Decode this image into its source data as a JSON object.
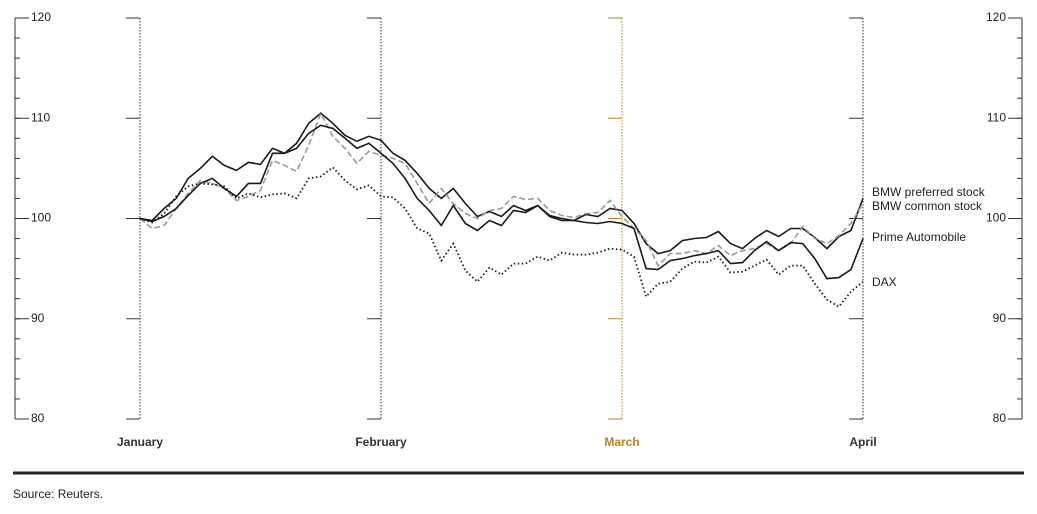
{
  "chart_data": {
    "type": "line",
    "x": [
      0,
      1,
      2,
      3,
      4,
      5,
      6,
      7,
      8,
      9,
      10,
      11,
      12,
      13,
      14,
      15,
      16,
      17,
      18,
      19,
      20,
      21,
      22,
      23,
      24,
      25,
      26,
      27,
      28,
      29,
      30,
      31,
      32,
      33,
      34,
      35,
      36,
      37,
      38,
      39,
      40,
      41,
      42,
      43,
      44,
      45,
      46,
      47,
      48,
      49,
      50,
      51,
      52,
      53,
      54,
      55,
      56,
      57,
      58,
      59,
      60
    ],
    "xlim": [
      0,
      60
    ],
    "xticks": [
      {
        "value": 0,
        "label": "January"
      },
      {
        "value": 20,
        "label": "February"
      },
      {
        "value": 40,
        "label": "March"
      },
      {
        "value": 60,
        "label": "April"
      }
    ],
    "highlight_tick": 2,
    "highlight_color": "#b5842a",
    "ylim": [
      80,
      120
    ],
    "yticks": [
      80,
      90,
      100,
      110,
      120
    ],
    "y_minor_step": 2,
    "series": [
      {
        "name": "BMW preferred stock",
        "color": "#1a1a1a",
        "line_style": "solid",
        "values": [
          100,
          99.8,
          101,
          102,
          104,
          105,
          106.2,
          105.3,
          104.8,
          105.6,
          105.4,
          107,
          106.5,
          107.5,
          109.5,
          110.5,
          109.5,
          108.3,
          107.7,
          108.2,
          107.8,
          106.5,
          105.8,
          104.5,
          103,
          102,
          103,
          101.5,
          100.2,
          100.7,
          100.2,
          101.3,
          100.8,
          101.3,
          100.3,
          100,
          99.8,
          100.4,
          100.2,
          101,
          100.8,
          99.5,
          97.5,
          96.5,
          96.8,
          97.8,
          98,
          98.1,
          98.7,
          97.5,
          97,
          98,
          98.8,
          98.2,
          99,
          99,
          98.1,
          97,
          98.2,
          98.8,
          102
        ]
      },
      {
        "name": "BMW common stock",
        "color": "#999999",
        "line_style": "dashed",
        "values": [
          100,
          99,
          99.3,
          101,
          102.5,
          103.8,
          103.5,
          103,
          101.8,
          102.2,
          102.8,
          105.8,
          105.3,
          104.7,
          107.3,
          110.5,
          108.2,
          107,
          105.5,
          106.7,
          106.3,
          106,
          105.5,
          103.5,
          101.5,
          103,
          101.5,
          100.5,
          100,
          100.8,
          101,
          102.2,
          101.9,
          102,
          100.8,
          100.3,
          100.1,
          100.5,
          100.6,
          101.8,
          100.2,
          99,
          97.8,
          95.3,
          96.5,
          96.5,
          96.8,
          96.5,
          97.3,
          96.3,
          96.8,
          97,
          97.5,
          96.8,
          97.5,
          99.2,
          98,
          97.5,
          98.3,
          99.5,
          101.5
        ]
      },
      {
        "name": "Prime Automobile",
        "color": "#1a1a1a",
        "line_style": "solid",
        "values": [
          100,
          99.7,
          100.2,
          101,
          102.3,
          103.5,
          104,
          103,
          102.2,
          103.5,
          103.5,
          106.5,
          106.5,
          107,
          108.5,
          109.3,
          109,
          108,
          107,
          107.5,
          106.5,
          105.5,
          104,
          102,
          100.8,
          99.3,
          101.3,
          99.5,
          98.8,
          99.8,
          99.3,
          100.8,
          100.6,
          101.3,
          100.2,
          99.8,
          99.8,
          99.6,
          99.5,
          99.7,
          99.5,
          99,
          95,
          94.9,
          95.8,
          96,
          96.3,
          96.5,
          96.8,
          95.5,
          95.6,
          96.8,
          97.7,
          96.8,
          97.6,
          97.5,
          96,
          94,
          94.1,
          94.9,
          98
        ]
      },
      {
        "name": "DAX",
        "color": "#1a1a1a",
        "line_style": "dotted",
        "values": [
          100,
          99.6,
          100.5,
          102.2,
          103.2,
          103.5,
          103.4,
          103.2,
          102,
          102.5,
          102.1,
          102.4,
          102.5,
          102,
          104,
          104.2,
          105.1,
          103.8,
          102.9,
          103.3,
          102.2,
          102.1,
          101,
          99,
          98.5,
          95.8,
          97.5,
          94.8,
          93.7,
          95.1,
          94.4,
          95.5,
          95.5,
          96.2,
          95.8,
          96.6,
          96.4,
          96.4,
          96.6,
          97,
          96.9,
          96.2,
          92.2,
          93.5,
          93.7,
          95,
          95.7,
          95.6,
          96.2,
          94.6,
          94.7,
          95.3,
          95.9,
          94.4,
          95.3,
          95.3,
          93.5,
          91.9,
          91.2,
          92.7,
          93.7
        ]
      }
    ],
    "source": "Source: Reuters."
  }
}
